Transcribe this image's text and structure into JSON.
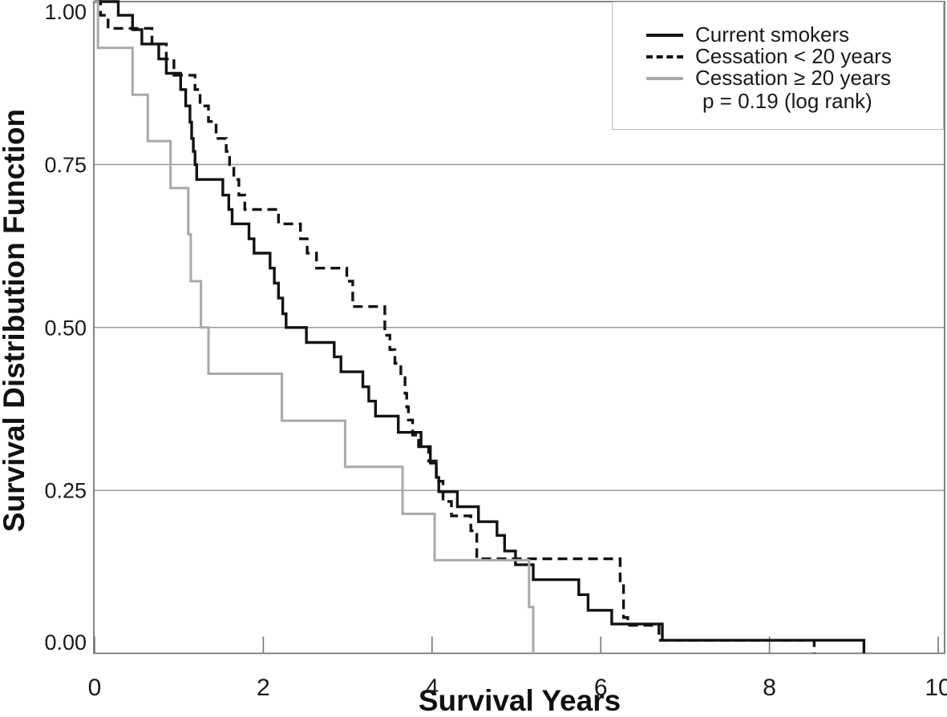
{
  "figure": {
    "x_axis_title": "Survival Years",
    "y_axis_title": "Survival Distribution Function"
  },
  "legend": {
    "items": [
      {
        "label": "Current smokers",
        "style": "solid",
        "color": "#121212"
      },
      {
        "label": "Cessation < 20 years",
        "style": "dashed",
        "color": "#121212"
      },
      {
        "label": "Cessation ≥ 20 years",
        "style": "solid",
        "color": "#a9a9a9"
      }
    ],
    "note": "p = 0.19 (log rank)"
  },
  "chart_data": {
    "type": "line",
    "subtype": "kaplan-meier-step",
    "title": "",
    "xlabel": "Survival Years",
    "ylabel": "Survival Distribution Function",
    "xlim": [
      0,
      10
    ],
    "ylim": [
      0,
      1
    ],
    "x_ticks": [
      {
        "value": 0,
        "label": "0"
      },
      {
        "value": 2,
        "label": "2"
      },
      {
        "value": 4,
        "label": "4"
      },
      {
        "value": 6,
        "label": "6"
      },
      {
        "value": 8,
        "label": "8"
      },
      {
        "value": 10,
        "label": "10"
      }
    ],
    "y_ticks": [
      {
        "value": 0,
        "label": "0.00"
      },
      {
        "value": 0.25,
        "label": "0.25"
      },
      {
        "value": 0.5,
        "label": "0.50"
      },
      {
        "value": 0.75,
        "label": "0.75"
      },
      {
        "value": 1,
        "label": "1.00"
      }
    ],
    "y_gridlines": [
      0.25,
      0.5,
      0.75
    ],
    "grid": "horizontal",
    "legend_position": "top-right",
    "annotation": "p = 0.19 (log rank)",
    "series": [
      {
        "name": "Current smokers",
        "style": "solid",
        "color": "#121212",
        "start": [
          0,
          1.0
        ],
        "points": [
          [
            0.28,
            0.979
          ],
          [
            0.45,
            0.957
          ],
          [
            0.56,
            0.935
          ],
          [
            0.76,
            0.912
          ],
          [
            0.85,
            0.89
          ],
          [
            1.02,
            0.865
          ],
          [
            1.08,
            0.84
          ],
          [
            1.13,
            0.815
          ],
          [
            1.15,
            0.79
          ],
          [
            1.17,
            0.77
          ],
          [
            1.19,
            0.75
          ],
          [
            1.21,
            0.727
          ],
          [
            1.52,
            0.703
          ],
          [
            1.59,
            0.681
          ],
          [
            1.63,
            0.659
          ],
          [
            1.83,
            0.636
          ],
          [
            1.89,
            0.614
          ],
          [
            2.08,
            0.591
          ],
          [
            2.13,
            0.568
          ],
          [
            2.18,
            0.545
          ],
          [
            2.23,
            0.521
          ],
          [
            2.27,
            0.5
          ],
          [
            2.51,
            0.477
          ],
          [
            2.84,
            0.455
          ],
          [
            2.92,
            0.432
          ],
          [
            3.18,
            0.409
          ],
          [
            3.25,
            0.387
          ],
          [
            3.33,
            0.364
          ],
          [
            3.6,
            0.339
          ],
          [
            3.87,
            0.317
          ],
          [
            3.98,
            0.292
          ],
          [
            4.05,
            0.27
          ],
          [
            4.08,
            0.248
          ],
          [
            4.3,
            0.225
          ],
          [
            4.55,
            0.202
          ],
          [
            4.77,
            0.181
          ],
          [
            4.86,
            0.157
          ],
          [
            4.99,
            0.136
          ],
          [
            5.2,
            0.113
          ],
          [
            5.74,
            0.09
          ],
          [
            5.85,
            0.066
          ],
          [
            6.13,
            0.045
          ],
          [
            6.73,
            0.02
          ],
          [
            9.12,
            0.0
          ]
        ]
      },
      {
        "name": "Cessation < 20 years",
        "style": "dashed",
        "color": "#121212",
        "start": [
          0,
          1.0
        ],
        "points": [
          [
            0.07,
            0.979
          ],
          [
            0.16,
            0.959
          ],
          [
            0.68,
            0.935
          ],
          [
            0.85,
            0.912
          ],
          [
            0.94,
            0.887
          ],
          [
            1.19,
            0.865
          ],
          [
            1.25,
            0.84
          ],
          [
            1.35,
            0.816
          ],
          [
            1.44,
            0.79
          ],
          [
            1.56,
            0.77
          ],
          [
            1.6,
            0.75
          ],
          [
            1.65,
            0.727
          ],
          [
            1.71,
            0.703
          ],
          [
            1.78,
            0.681
          ],
          [
            2.18,
            0.659
          ],
          [
            2.44,
            0.636
          ],
          [
            2.52,
            0.614
          ],
          [
            2.63,
            0.591
          ],
          [
            2.99,
            0.571
          ],
          [
            3.06,
            0.532
          ],
          [
            3.44,
            0.488
          ],
          [
            3.5,
            0.466
          ],
          [
            3.56,
            0.445
          ],
          [
            3.63,
            0.423
          ],
          [
            3.68,
            0.399
          ],
          [
            3.7,
            0.378
          ],
          [
            3.72,
            0.358
          ],
          [
            3.77,
            0.335
          ],
          [
            3.84,
            0.317
          ],
          [
            3.96,
            0.295
          ],
          [
            4.05,
            0.264
          ],
          [
            4.13,
            0.233
          ],
          [
            4.23,
            0.211
          ],
          [
            4.46,
            0.188
          ],
          [
            4.53,
            0.145
          ],
          [
            6.23,
            0.107
          ],
          [
            6.27,
            0.055
          ],
          [
            6.32,
            0.043
          ],
          [
            6.69,
            0.02
          ],
          [
            8.53,
            0.0
          ]
        ]
      },
      {
        "name": "Cessation ≥ 20 years",
        "style": "solid",
        "color": "#a9a9a9",
        "start": [
          0,
          1.0
        ],
        "points": [
          [
            0.04,
            0.929
          ],
          [
            0.45,
            0.857
          ],
          [
            0.63,
            0.786
          ],
          [
            0.9,
            0.714
          ],
          [
            1.11,
            0.643
          ],
          [
            1.14,
            0.571
          ],
          [
            1.26,
            0.5
          ],
          [
            1.35,
            0.429
          ],
          [
            2.22,
            0.357
          ],
          [
            2.97,
            0.286
          ],
          [
            3.65,
            0.214
          ],
          [
            4.03,
            0.143
          ],
          [
            5.15,
            0.071
          ],
          [
            5.2,
            0.0
          ]
        ]
      }
    ]
  }
}
